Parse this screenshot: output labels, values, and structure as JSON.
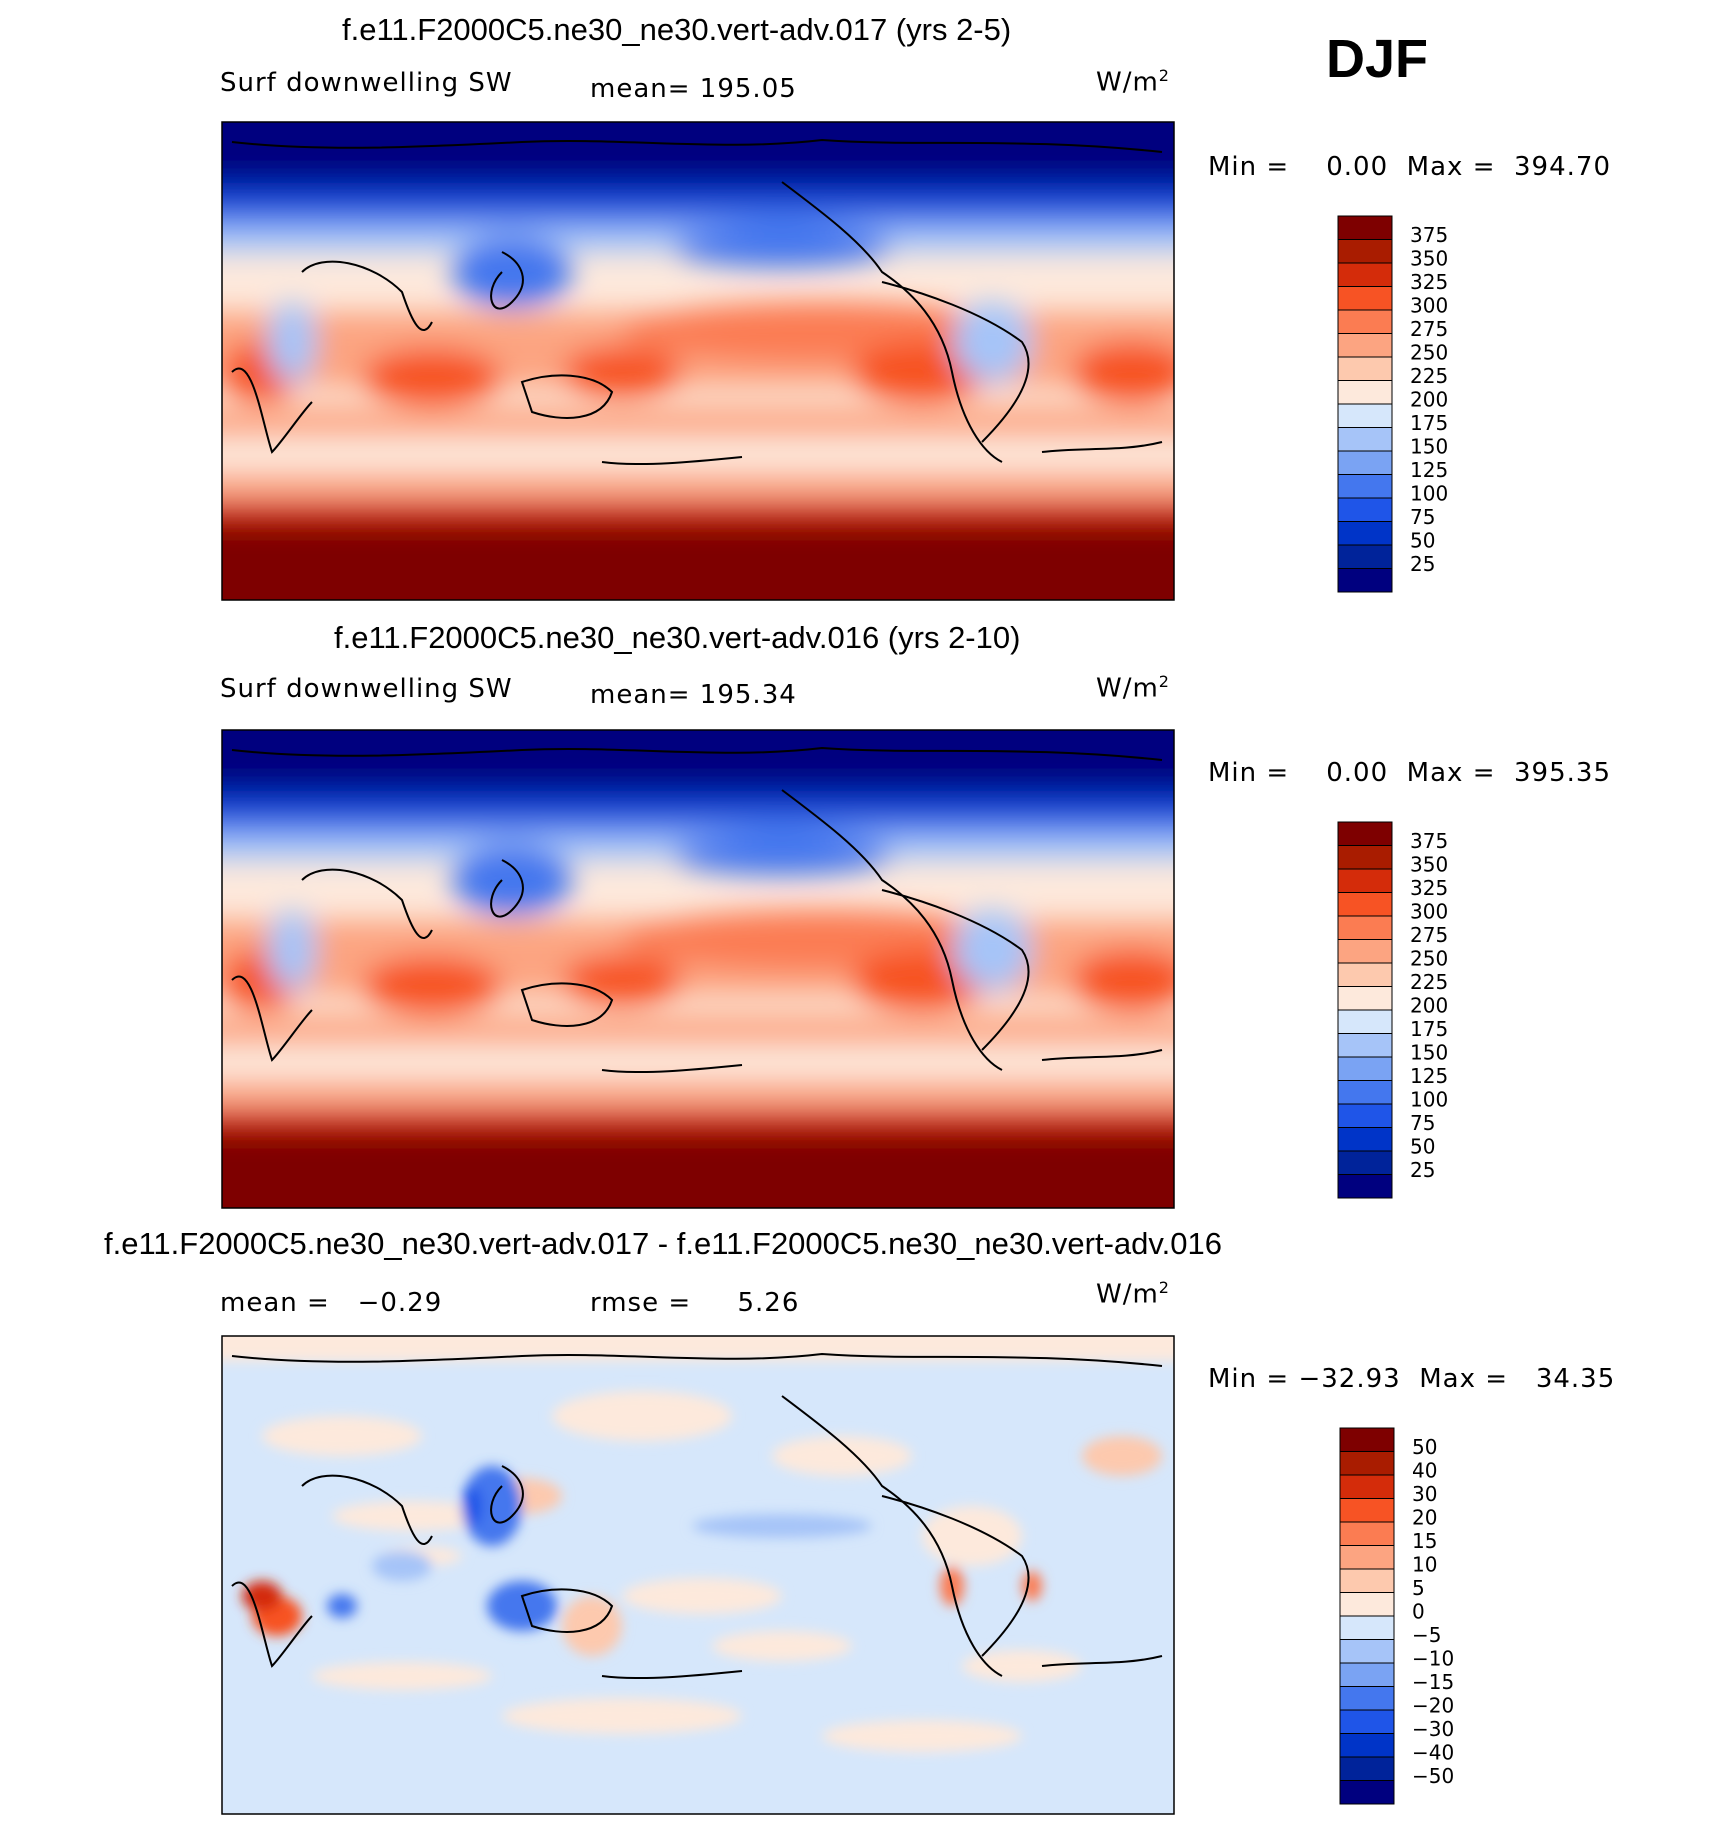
{
  "season": "DJF",
  "colors": {
    "full": [
      "#00007f",
      "#00239a",
      "#0034c8",
      "#1f55e8",
      "#4477ee",
      "#7aa3f3",
      "#a6c4f8",
      "#d6e7fb",
      "#fde9dc",
      "#fdc9ae",
      "#fca481",
      "#fb7c52",
      "#f75324",
      "#d42c0a",
      "#a91c00",
      "#7e0000"
    ],
    "diff": [
      "#00007f",
      "#00239a",
      "#0034c8",
      "#1f55e8",
      "#4477ee",
      "#7aa3f3",
      "#a6c4f8",
      "#d6e7fb",
      "#fde9dc",
      "#fdc9ae",
      "#fca481",
      "#fb7c52",
      "#f75324",
      "#d42c0a",
      "#a91c00",
      "#7e0000"
    ]
  },
  "panels": [
    {
      "title": "f.e11.F2000C5.ne30_ne30.vert-adv.017 (yrs 2-5)",
      "left_label": "Surf downwelling SW",
      "mid_label": "mean=",
      "mid_value": "195.05",
      "units": "W/m",
      "units_sup": "2",
      "minmax_label": "Min =",
      "min_value": "0.00",
      "max_label": "Max =",
      "max_value": "394.70",
      "colorbar_levels": [
        "375",
        "350",
        "325",
        "300",
        "275",
        "250",
        "225",
        "200",
        "175",
        "150",
        "125",
        "100",
        "75",
        "50",
        "25"
      ]
    },
    {
      "title": "f.e11.F2000C5.ne30_ne30.vert-adv.016 (yrs 2-10)",
      "left_label": "Surf downwelling SW",
      "mid_label": "mean=",
      "mid_value": "195.34",
      "units": "W/m",
      "units_sup": "2",
      "minmax_label": "Min =",
      "min_value": "0.00",
      "max_label": "Max =",
      "max_value": "395.35",
      "colorbar_levels": [
        "375",
        "350",
        "325",
        "300",
        "275",
        "250",
        "225",
        "200",
        "175",
        "150",
        "125",
        "100",
        "75",
        "50",
        "25"
      ]
    },
    {
      "title": "f.e11.F2000C5.ne30_ne30.vert-adv.017 - f.e11.F2000C5.ne30_ne30.vert-adv.016",
      "left_label": "mean =",
      "left_value": "−0.29",
      "mid_label": "rmse =",
      "mid_value": "5.26",
      "units": "W/m",
      "units_sup": "2",
      "minmax_label": "Min =",
      "min_value": "−32.93",
      "max_label": "Max =",
      "max_value": "34.35",
      "colorbar_levels": [
        "50",
        "40",
        "30",
        "20",
        "15",
        "10",
        "5",
        "0",
        "−5",
        "−10",
        "−15",
        "−20",
        "−30",
        "−40",
        "−50"
      ]
    }
  ]
}
